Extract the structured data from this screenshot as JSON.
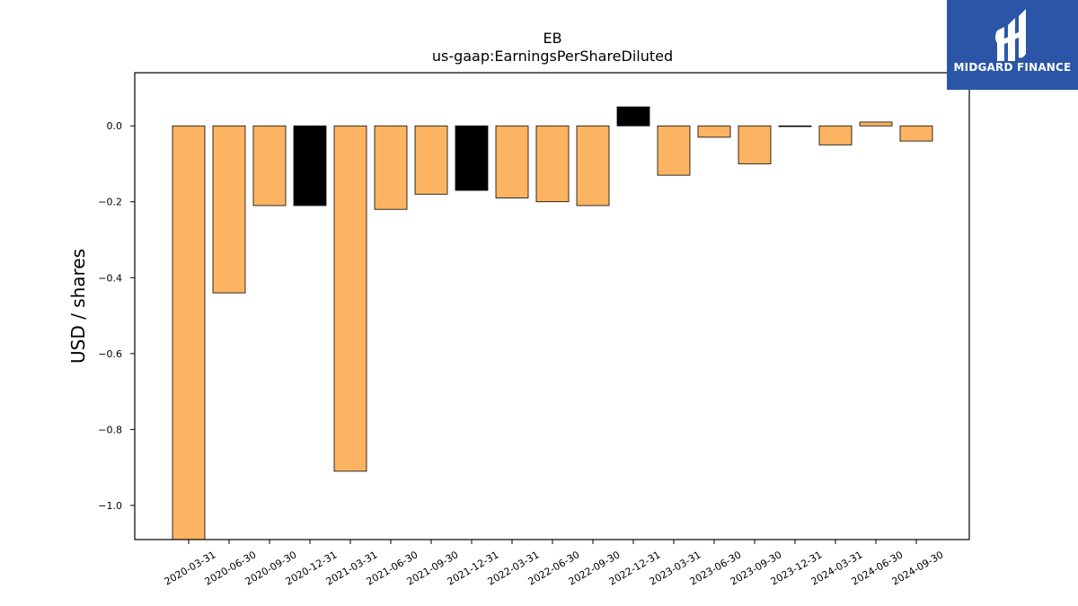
{
  "chart_data": {
    "type": "bar",
    "title": "EB",
    "subtitle": "us-gaap:EarningsPerShareDiluted",
    "xlabel": "",
    "ylabel": "USD / shares",
    "ylim": [
      -1.09,
      0.14
    ],
    "yticks": [
      0.0,
      -0.2,
      -0.4,
      -0.6,
      -0.8,
      -1.0
    ],
    "ytick_labels": [
      "0.0",
      "−0.2",
      "−0.4",
      "−0.6",
      "−0.8",
      "−1.0"
    ],
    "grid": false,
    "categories": [
      "2020-03-31",
      "2020-06-30",
      "2020-09-30",
      "2020-12-31",
      "2021-03-31",
      "2021-06-30",
      "2021-09-30",
      "2021-12-31",
      "2022-03-31",
      "2022-06-30",
      "2022-09-30",
      "2022-12-31",
      "2023-03-31",
      "2023-06-30",
      "2023-09-30",
      "2023-12-31",
      "2024-03-31",
      "2024-06-30",
      "2024-09-30"
    ],
    "values": [
      -1.09,
      -0.44,
      -0.21,
      -0.21,
      -0.91,
      -0.22,
      -0.18,
      -0.17,
      -0.19,
      -0.2,
      -0.21,
      0.05,
      -0.13,
      -0.03,
      -0.1,
      0.0,
      -0.05,
      0.01,
      -0.04
    ],
    "highlighted": [
      false,
      false,
      false,
      true,
      false,
      false,
      false,
      true,
      false,
      false,
      false,
      true,
      false,
      false,
      false,
      false,
      false,
      false,
      false
    ],
    "colors": {
      "bar": "#fdb462",
      "highlight": "#000000",
      "edge": "#000000"
    }
  },
  "logo": {
    "text": "MIDGARD FINANCE",
    "background": "#2b56a8"
  }
}
